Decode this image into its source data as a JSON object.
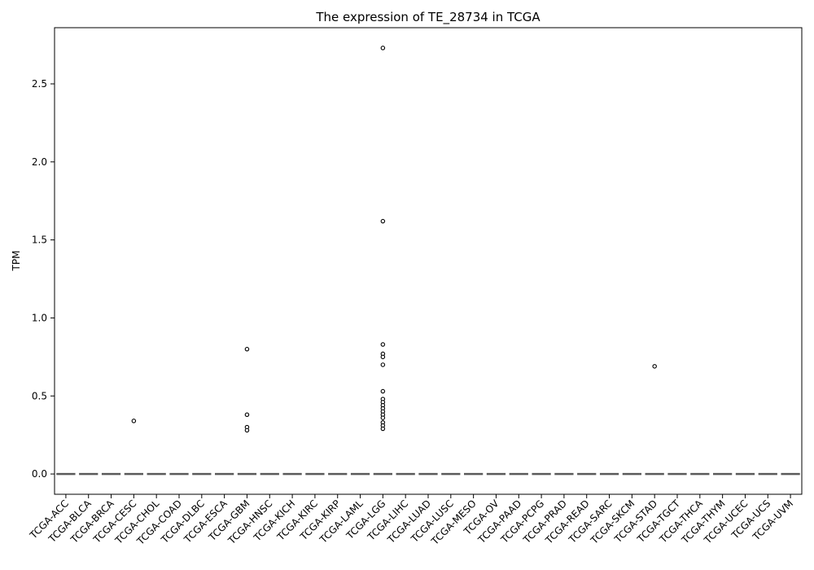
{
  "chart_data": {
    "type": "box",
    "title": "The expression of TE_28734 in TCGA",
    "xlabel": "",
    "ylabel": "TPM",
    "ylim": [
      -0.13,
      2.86
    ],
    "yticks": [
      0.0,
      0.5,
      1.0,
      1.5,
      2.0,
      2.5
    ],
    "ytick_labels": [
      "0.0",
      "0.5",
      "1.0",
      "1.5",
      "2.0",
      "2.5"
    ],
    "grid": false,
    "legend": false,
    "categories": [
      "TCGA-ACC",
      "TCGA-BLCA",
      "TCGA-BRCA",
      "TCGA-CESC",
      "TCGA-CHOL",
      "TCGA-COAD",
      "TCGA-DLBC",
      "TCGA-ESCA",
      "TCGA-GBM",
      "TCGA-HNSC",
      "TCGA-KICH",
      "TCGA-KIRC",
      "TCGA-KIRP",
      "TCGA-LAML",
      "TCGA-LGG",
      "TCGA-LIHC",
      "TCGA-LUAD",
      "TCGA-LUSC",
      "TCGA-MESO",
      "TCGA-OV",
      "TCGA-PAAD",
      "TCGA-PCPG",
      "TCGA-PRAD",
      "TCGA-READ",
      "TCGA-SARC",
      "TCGA-SKCM",
      "TCGA-STAD",
      "TCGA-TGCT",
      "TCGA-THCA",
      "TCGA-THYM",
      "TCGA-UCEC",
      "TCGA-UCS",
      "TCGA-UVM"
    ],
    "box_stats": {
      "q1": 0.0,
      "median": 0.0,
      "q3": 0.0,
      "whisker_low": 0.0,
      "whisker_high": 0.0
    },
    "outliers": [
      {
        "category": "TCGA-CESC",
        "values": [
          0.34
        ]
      },
      {
        "category": "TCGA-GBM",
        "values": [
          0.8,
          0.38,
          0.3,
          0.28
        ]
      },
      {
        "category": "TCGA-LGG",
        "values": [
          2.73,
          1.62,
          0.83,
          0.77,
          0.75,
          0.7,
          0.53,
          0.48,
          0.46,
          0.44,
          0.42,
          0.4,
          0.38,
          0.36,
          0.33,
          0.31,
          0.29
        ]
      },
      {
        "category": "TCGA-STAD",
        "values": [
          0.69
        ]
      }
    ],
    "colors": {
      "box": "#808080",
      "median": "#5a5a5a",
      "axis": "#000000",
      "outlier_stroke": "#000000",
      "outlier_fill": "#ffffff"
    }
  }
}
